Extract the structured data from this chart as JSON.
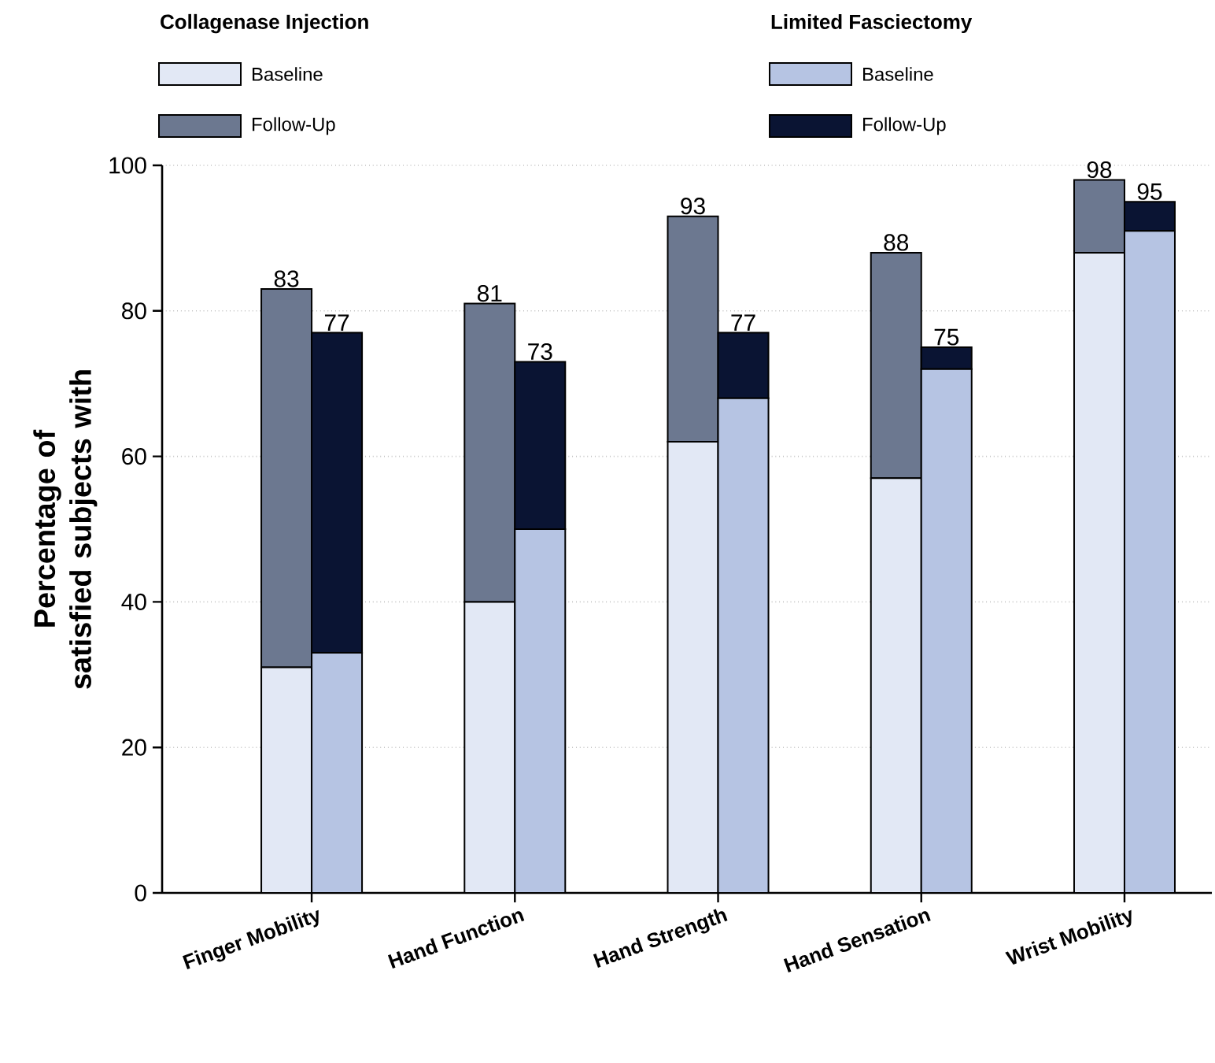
{
  "chart_data": [
    {
      "type": "bar",
      "stacked": true,
      "legend_title": "Collagenase Injection",
      "ylabel": "Percentage of satisfied subjects with",
      "categories": [
        "Finger Mobility",
        "Hand Function",
        "Hand Strength",
        "Hand Sensation",
        "Wrist Mobility"
      ],
      "series": [
        {
          "name": "Baseline",
          "color": "#e2e8f5",
          "values": [
            31,
            40,
            62,
            57,
            88
          ]
        },
        {
          "name": "Follow-Up",
          "color": "#6c7890",
          "values": [
            52,
            41,
            31,
            31,
            10
          ]
        }
      ],
      "totals": [
        "83",
        "81",
        "93",
        "88",
        "98"
      ],
      "ylim": [
        0,
        100
      ],
      "yticks": [
        0,
        20,
        40,
        60,
        80,
        100
      ],
      "grid": "y",
      "legend": "top left"
    },
    {
      "type": "bar",
      "stacked": true,
      "legend_title": "Limited Fasciectomy",
      "categories": [
        null,
        null,
        null,
        null,
        null
      ],
      "series": [
        {
          "name": "Baseline",
          "color": "#b6c4e3",
          "values": [
            33,
            50,
            68,
            72,
            91
          ]
        },
        {
          "name": "Follow-Up",
          "color": "#0a1433",
          "values": [
            44,
            23,
            9,
            3,
            4
          ]
        }
      ],
      "totals": [
        "77",
        "73",
        "77",
        "75",
        "95"
      ],
      "ylim": [
        0,
        100
      ],
      "legend": "top"
    }
  ]
}
